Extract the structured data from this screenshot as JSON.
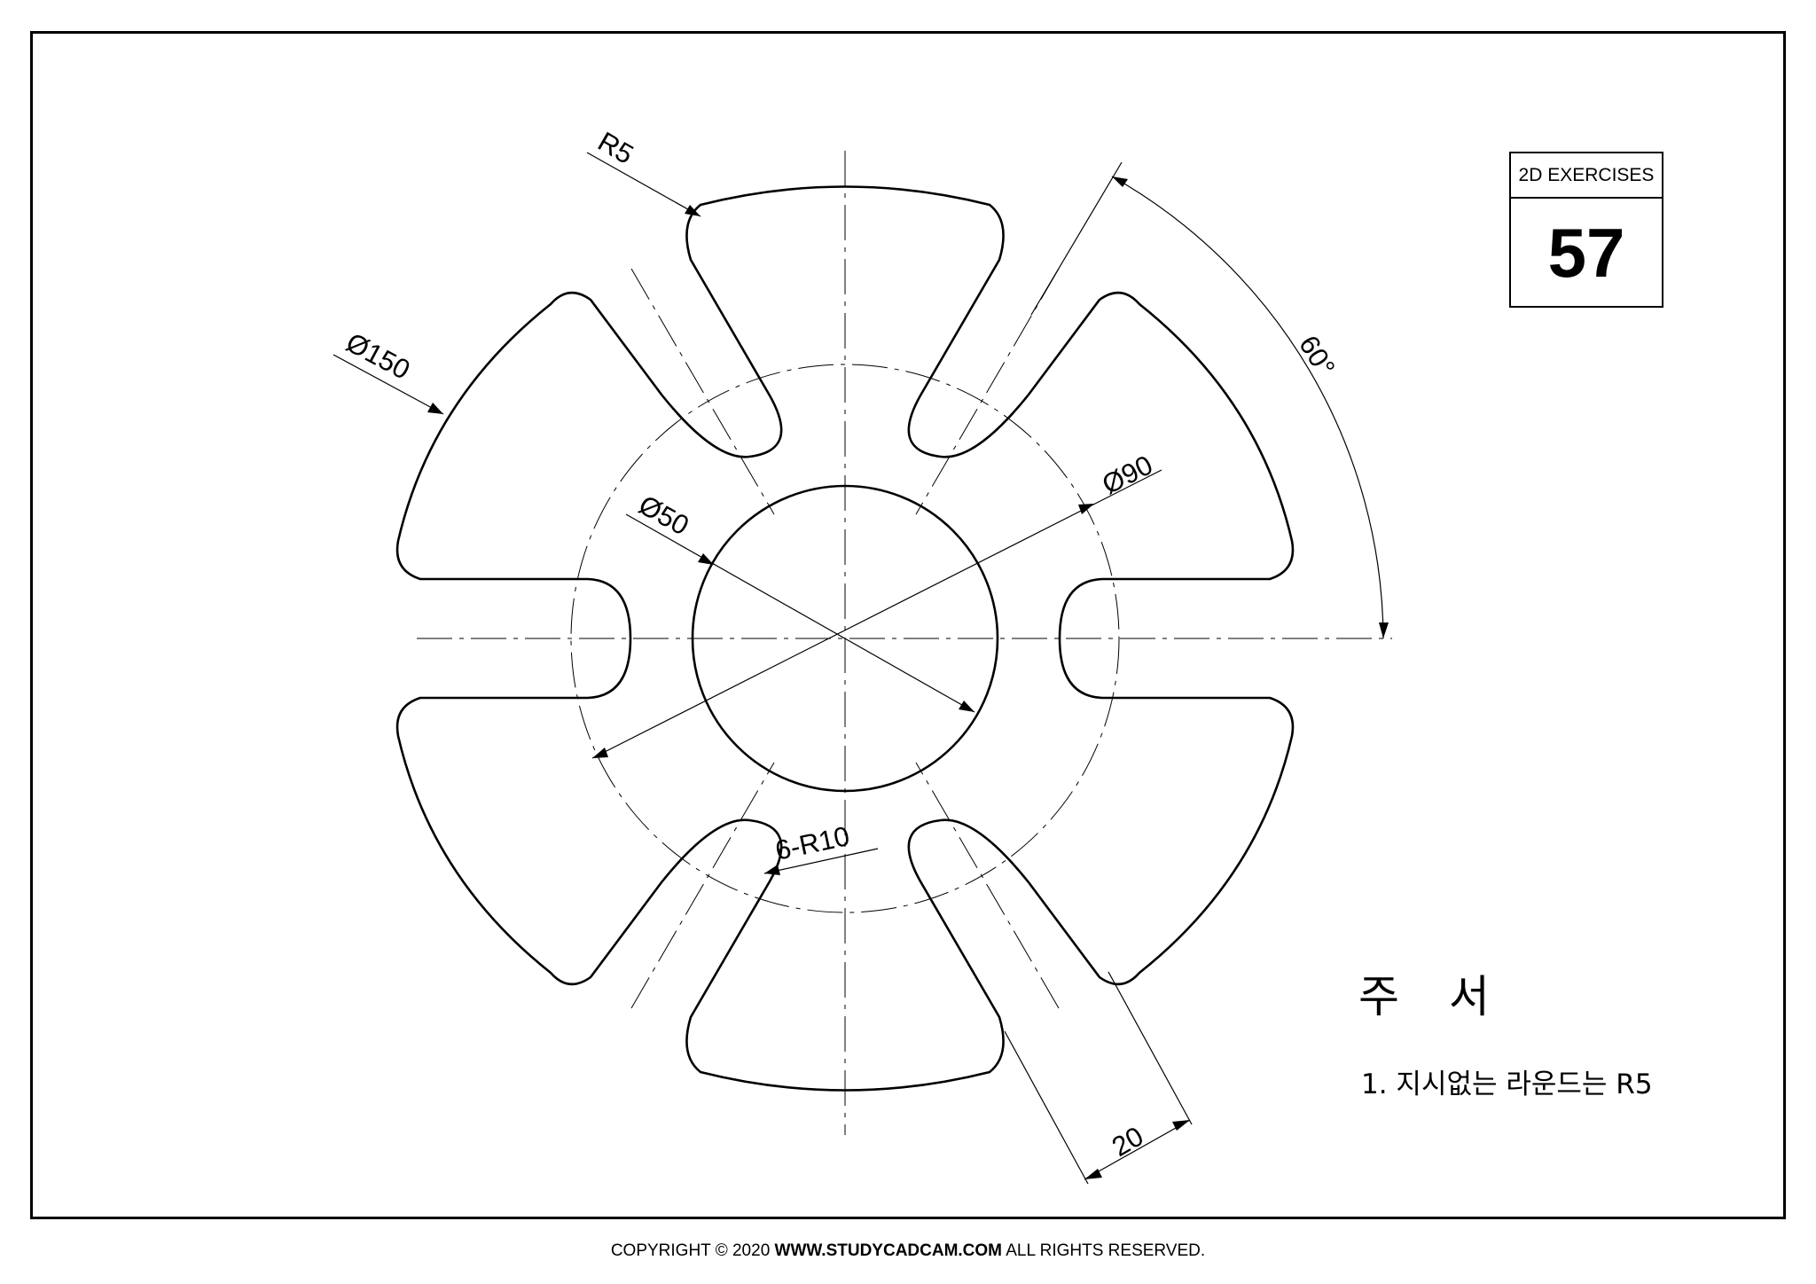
{
  "title_block": {
    "header": "2D EXERCISES",
    "number": "57"
  },
  "dimensions": {
    "r5": "R5",
    "d150": "Ø150",
    "d90": "Ø90",
    "d50": "Ø50",
    "r10": "6-R10",
    "angle": "60°",
    "width": "20"
  },
  "notes": {
    "title": "주 서",
    "line1": "1. 지시없는 라운드는 R5"
  },
  "footer": {
    "prefix": "COPYRIGHT © 2020 ",
    "site": "WWW.STUDYCADCAM.COM",
    "suffix": " ALL RIGHTS RESERVED."
  }
}
